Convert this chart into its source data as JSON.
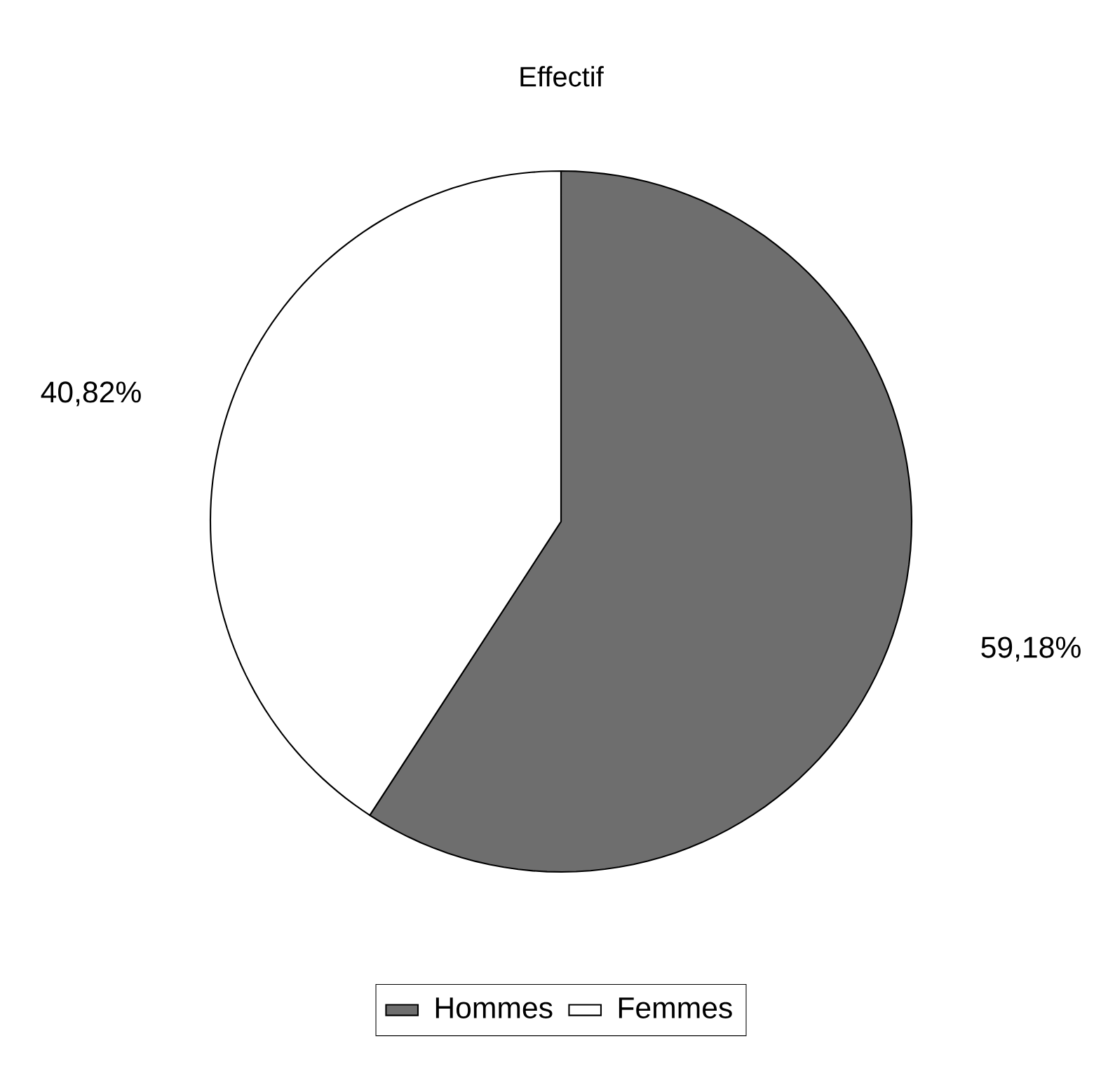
{
  "chart_data": {
    "type": "pie",
    "title": "Effectif",
    "categories": [
      "Hommes",
      "Femmes"
    ],
    "values": [
      59.18,
      40.82
    ],
    "colors": [
      "#6e6e6e",
      "#ffffff"
    ],
    "value_labels": [
      "59,18%",
      "40,82%"
    ],
    "legend": "bottom"
  }
}
